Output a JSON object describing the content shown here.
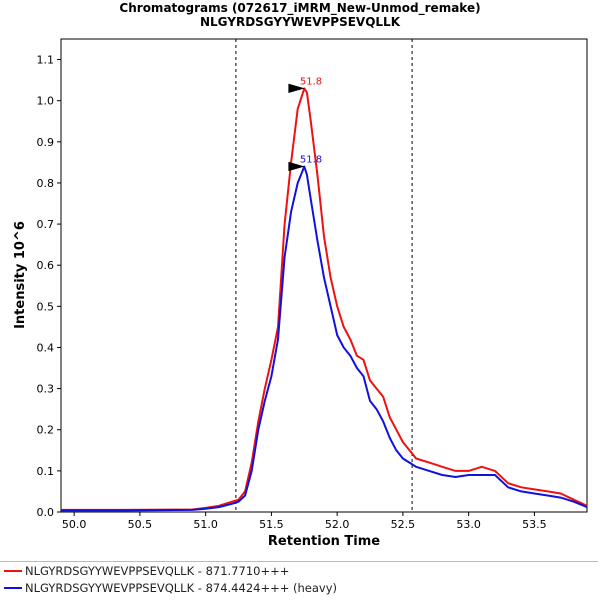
{
  "title_line1": "Chromatograms (072617_iMRM_New-Unmod_remake)",
  "title_line2": "NLGYRDSGYYWEVPPSEVQLLK",
  "chart_data": {
    "type": "line",
    "title": "Chromatograms (072617_iMRM_New-Unmod_remake)",
    "subtitle": "NLGYRDSGYYWEVPPSEVQLLK",
    "xlabel": "Retention Time",
    "ylabel": "Intensity 10^6",
    "xlim": [
      49.9,
      53.9
    ],
    "ylim": [
      0.0,
      1.15
    ],
    "x_ticks": [
      50.0,
      50.5,
      51.0,
      51.5,
      52.0,
      52.5,
      53.0,
      53.5
    ],
    "x_tick_labels": [
      "50.0",
      "50.5",
      "51.0",
      "51.5",
      "52.0",
      "52.5",
      "53.0",
      "53.5"
    ],
    "y_ticks": [
      0.0,
      0.1,
      0.2,
      0.3,
      0.4,
      0.5,
      0.6,
      0.7,
      0.8,
      0.9,
      1.0,
      1.1
    ],
    "y_tick_labels": [
      "0.0",
      "0.1",
      "0.2",
      "0.3",
      "0.4",
      "0.5",
      "0.6",
      "0.7",
      "0.8",
      "0.9",
      "1.0",
      "1.1"
    ],
    "boundaries": [
      51.23,
      52.57
    ],
    "series": [
      {
        "name": "NLGYRDSGYYWEVPPSEVQLLK - 871.7710+++",
        "color": "#ee1111",
        "x": [
          49.9,
          50.4,
          50.9,
          51.0,
          51.1,
          51.2,
          51.25,
          51.3,
          51.35,
          51.4,
          51.45,
          51.5,
          51.55,
          51.6,
          51.65,
          51.7,
          51.75,
          51.77,
          51.8,
          51.85,
          51.9,
          51.95,
          52.0,
          52.05,
          52.1,
          52.15,
          52.2,
          52.25,
          52.3,
          52.35,
          52.4,
          52.45,
          52.5,
          52.55,
          52.6,
          52.7,
          52.8,
          52.9,
          53.0,
          53.1,
          53.2,
          53.3,
          53.4,
          53.5,
          53.6,
          53.7,
          53.8,
          53.9
        ],
        "values": [
          0.005,
          0.005,
          0.006,
          0.01,
          0.015,
          0.025,
          0.03,
          0.05,
          0.12,
          0.22,
          0.3,
          0.37,
          0.45,
          0.7,
          0.85,
          0.98,
          1.03,
          1.02,
          0.95,
          0.82,
          0.67,
          0.57,
          0.5,
          0.45,
          0.42,
          0.38,
          0.37,
          0.32,
          0.3,
          0.28,
          0.23,
          0.2,
          0.17,
          0.15,
          0.13,
          0.12,
          0.11,
          0.1,
          0.1,
          0.11,
          0.1,
          0.07,
          0.06,
          0.055,
          0.05,
          0.045,
          0.03,
          0.015
        ]
      },
      {
        "name": "NLGYRDSGYYWEVPPSEVQLLK - 874.4424+++ (heavy)",
        "color": "#1111dd",
        "x": [
          49.9,
          50.4,
          50.9,
          51.0,
          51.1,
          51.2,
          51.25,
          51.3,
          51.35,
          51.4,
          51.45,
          51.5,
          51.55,
          51.6,
          51.65,
          51.7,
          51.75,
          51.77,
          51.8,
          51.85,
          51.9,
          51.95,
          52.0,
          52.05,
          52.1,
          52.15,
          52.2,
          52.25,
          52.3,
          52.35,
          52.4,
          52.45,
          52.5,
          52.55,
          52.6,
          52.7,
          52.8,
          52.9,
          53.0,
          53.1,
          53.2,
          53.3,
          53.4,
          53.5,
          53.6,
          53.7,
          53.8,
          53.9
        ],
        "values": [
          0.004,
          0.004,
          0.005,
          0.008,
          0.012,
          0.02,
          0.025,
          0.04,
          0.1,
          0.2,
          0.27,
          0.33,
          0.42,
          0.62,
          0.73,
          0.8,
          0.84,
          0.82,
          0.76,
          0.66,
          0.57,
          0.5,
          0.43,
          0.4,
          0.38,
          0.35,
          0.33,
          0.27,
          0.25,
          0.22,
          0.18,
          0.15,
          0.13,
          0.12,
          0.11,
          0.1,
          0.09,
          0.085,
          0.09,
          0.09,
          0.09,
          0.06,
          0.05,
          0.045,
          0.04,
          0.035,
          0.025,
          0.012
        ]
      }
    ],
    "peak_annotations": [
      {
        "label": "51.8",
        "x": 51.77,
        "y": 1.03,
        "color": "#ee1111"
      },
      {
        "label": "51.8",
        "x": 51.77,
        "y": 0.84,
        "color": "#1111dd"
      }
    ],
    "legend_position": "bottom"
  }
}
